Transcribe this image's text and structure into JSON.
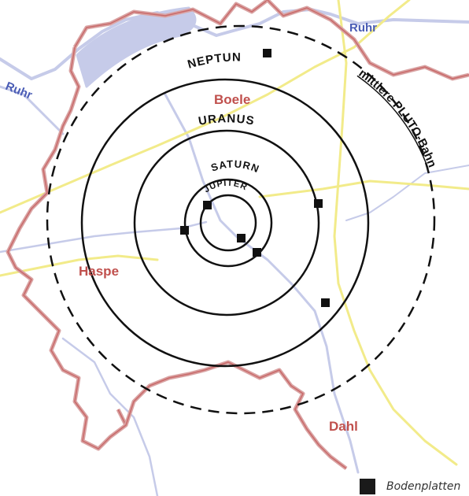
{
  "colors": {
    "river": "#c6cbe9",
    "river_label": "#4a5cb5",
    "border": "#d9a3a3",
    "border_dark": "#c96a6a",
    "road": "#f2eb8a",
    "orbit": "#111111",
    "town_label": "#c0504d",
    "marker": "#111111"
  },
  "rivers": [
    "Ruhr",
    "Ruhr"
  ],
  "towns": [
    "Boele",
    "Haspe",
    "Dahl"
  ],
  "orbits": {
    "pluto": "mittlere PLUTO-Bahn",
    "neptune": "NEPTUN",
    "uranus": "URANUS",
    "saturn": "SATURN",
    "jupiter": "JUPITER"
  },
  "legend": {
    "label": "Bodenplatten",
    "icon": "black-square"
  }
}
